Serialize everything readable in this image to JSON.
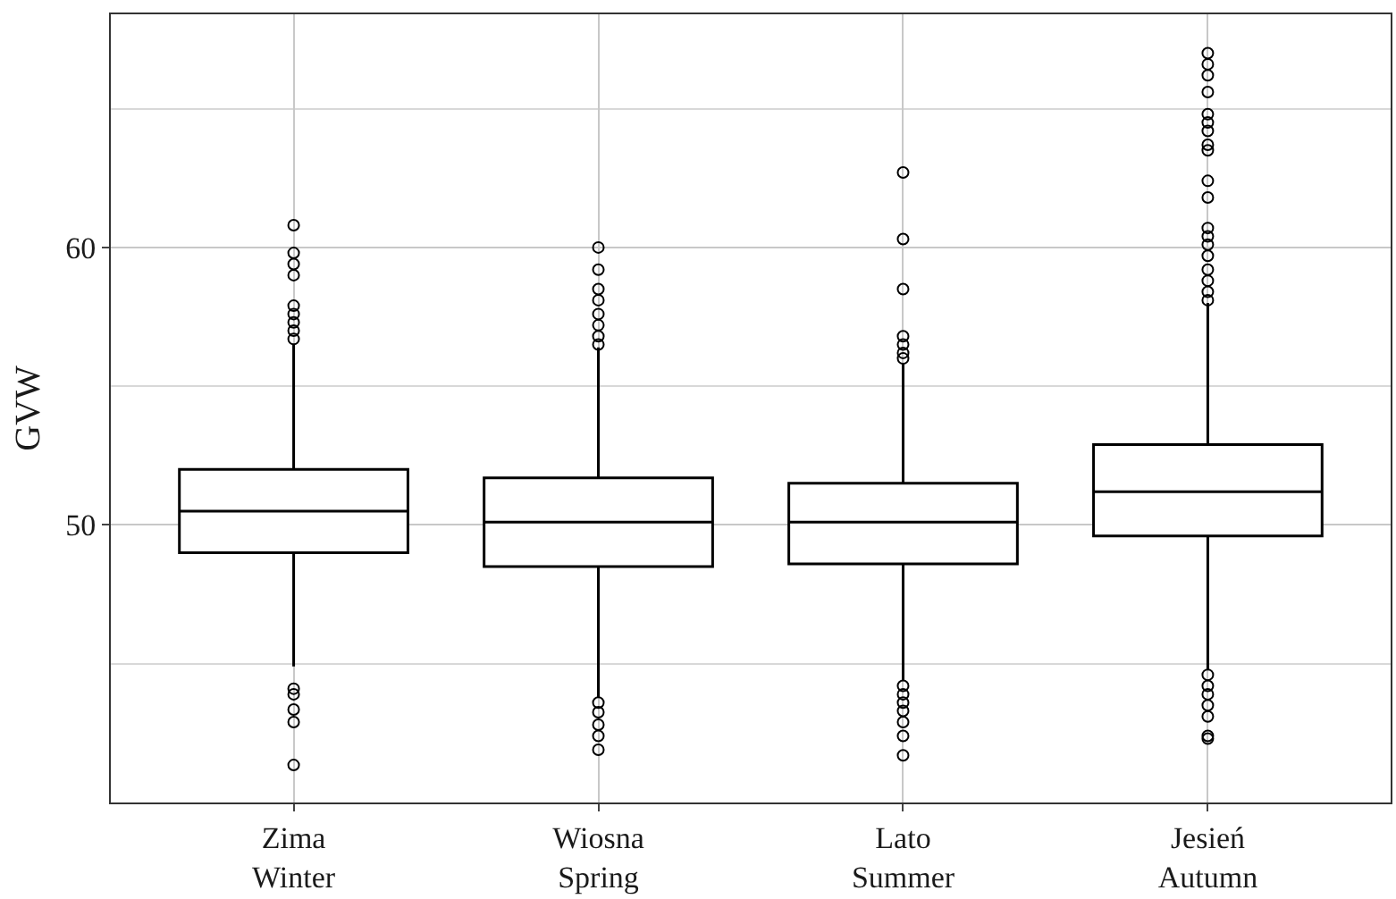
{
  "chart_data": {
    "type": "box",
    "ylabel": "GVW",
    "categories": [
      "Zima\nWinter",
      "Wiosna\nSpring",
      "Lato\nSummer",
      "Jesień\nAutumn"
    ],
    "boxes": [
      {
        "low": 44.9,
        "q1": 49.0,
        "median": 50.5,
        "q3": 52.0,
        "high": 56.5,
        "outliers": [
          60.8,
          59.8,
          59.4,
          59.0,
          57.9,
          57.6,
          57.3,
          57.0,
          56.7,
          44.1,
          43.9,
          43.35,
          42.9,
          41.35
        ]
      },
      {
        "low": 43.8,
        "q1": 48.5,
        "median": 50.1,
        "q3": 51.7,
        "high": 56.4,
        "outliers": [
          60.0,
          59.2,
          58.5,
          58.1,
          57.6,
          57.2,
          56.8,
          56.5,
          43.6,
          43.25,
          42.8,
          42.4,
          41.9
        ]
      },
      {
        "low": 44.4,
        "q1": 48.6,
        "median": 50.1,
        "q3": 51.5,
        "high": 55.8,
        "outliers": [
          62.7,
          60.3,
          58.5,
          56.8,
          56.5,
          56.2,
          56.0,
          44.2,
          43.9,
          43.6,
          43.3,
          42.9,
          42.4,
          41.7
        ]
      },
      {
        "low": 44.8,
        "q1": 49.6,
        "median": 51.2,
        "q3": 52.9,
        "high": 58.0,
        "outliers": [
          67.0,
          66.6,
          66.2,
          65.6,
          64.8,
          64.5,
          64.2,
          63.7,
          63.5,
          62.4,
          61.8,
          60.7,
          60.4,
          60.1,
          59.7,
          59.2,
          58.8,
          58.4,
          58.1,
          44.6,
          44.2,
          43.9,
          43.5,
          43.1,
          42.4,
          42.3
        ]
      }
    ],
    "color": "#000000",
    "ylim": [
      40,
      68.4
    ],
    "yticks": [
      {
        "value": 45,
        "label": null
      },
      50,
      {
        "value": 55,
        "label": null
      },
      60,
      {
        "value": 65,
        "label": null
      }
    ],
    "grid": true
  }
}
